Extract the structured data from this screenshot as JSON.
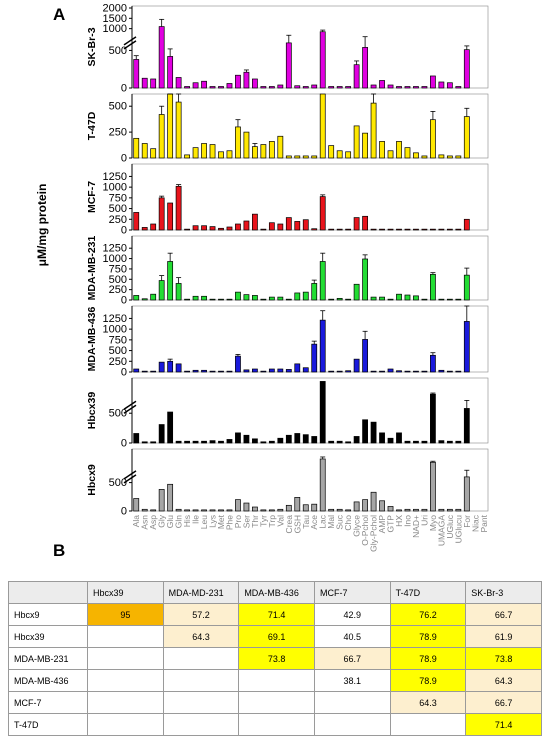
{
  "panel_a_label": "A",
  "panel_b_label": "B",
  "y_axis_title": "μM/mg protein",
  "colors": {
    "magenta": "#e000e0",
    "yellow": "#ffe800",
    "red": "#e8141c",
    "green": "#22dd33",
    "blue": "#1a1adc",
    "black": "#000000",
    "gray": "#a6a6a6",
    "orange": "#f6b400",
    "cream": "#fdefcf",
    "bright": "#ffff00",
    "header": "#ececec"
  },
  "chart_data": {
    "type": "bar",
    "categories": [
      "Ala",
      "Asn",
      "Asp",
      "Gly",
      "Glu",
      "Gln",
      "His",
      "Ile",
      "Leu",
      "Lys",
      "Met",
      "Phe",
      "Pro",
      "Ser",
      "Thr",
      "Tyr",
      "Trp",
      "Val",
      "Crea",
      "GSH",
      "Tau",
      "Ace",
      "Lac",
      "Mal",
      "Suc",
      "Cho",
      "Glyce",
      "O-Pchol",
      "Gly-Pchol",
      "AMP",
      "GTP",
      "HX",
      "Ino",
      "NAD+",
      "Uri",
      "Myo",
      "UMAGA",
      "UGluc",
      "UGlucu",
      "For",
      "Niac",
      "Pant"
    ],
    "panels": [
      {
        "name": "SK-Br-3",
        "color": "#e000e0",
        "axis": "broken",
        "ticks": [
          "0",
          "500",
          "1000",
          "1500",
          "2000"
        ],
        "values": [
          380,
          130,
          120,
          1100,
          420,
          140,
          20,
          70,
          90,
          20,
          20,
          60,
          170,
          210,
          120,
          20,
          20,
          40,
          600,
          30,
          20,
          40,
          850,
          20,
          20,
          20,
          310,
          540,
          40,
          100,
          40,
          20,
          20,
          20,
          20,
          160,
          80,
          70,
          20,
          510,
          0,
          0
        ],
        "errors": [
          50,
          0,
          0,
          350,
          100,
          0,
          0,
          0,
          0,
          0,
          0,
          0,
          0,
          30,
          0,
          0,
          0,
          0,
          80,
          0,
          0,
          0,
          80,
          0,
          0,
          0,
          50,
          70,
          0,
          0,
          0,
          0,
          0,
          0,
          0,
          0,
          0,
          0,
          0,
          50,
          0,
          0
        ]
      },
      {
        "name": "T-47D",
        "color": "#ffe800",
        "axis": "linear",
        "ticks": [
          "0",
          "250",
          "500"
        ],
        "values": [
          190,
          140,
          90,
          420,
          620,
          540,
          30,
          100,
          140,
          130,
          60,
          70,
          300,
          250,
          110,
          130,
          160,
          210,
          20,
          20,
          20,
          20,
          800,
          120,
          70,
          60,
          310,
          240,
          530,
          160,
          70,
          160,
          100,
          50,
          20,
          370,
          30,
          20,
          20,
          400,
          0,
          0
        ],
        "errors": [
          0,
          0,
          0,
          80,
          170,
          210,
          0,
          0,
          0,
          0,
          0,
          0,
          70,
          0,
          30,
          0,
          0,
          0,
          0,
          0,
          0,
          0,
          0,
          0,
          0,
          0,
          0,
          0,
          110,
          0,
          0,
          0,
          0,
          0,
          0,
          80,
          0,
          0,
          0,
          80,
          0,
          0
        ]
      },
      {
        "name": "MCF-7",
        "color": "#e8141c",
        "axis": "linear",
        "ticks": [
          "0",
          "250",
          "500",
          "750",
          "1000",
          "1250"
        ],
        "values": [
          410,
          60,
          140,
          750,
          630,
          1020,
          20,
          100,
          100,
          80,
          40,
          70,
          140,
          210,
          370,
          20,
          170,
          140,
          290,
          200,
          240,
          30,
          780,
          20,
          20,
          20,
          290,
          320,
          20,
          20,
          20,
          20,
          20,
          20,
          20,
          20,
          20,
          20,
          20,
          250,
          0,
          0
        ],
        "errors": [
          0,
          0,
          0,
          40,
          0,
          40,
          0,
          0,
          0,
          0,
          0,
          0,
          0,
          0,
          0,
          0,
          0,
          0,
          0,
          0,
          0,
          0,
          40,
          0,
          0,
          0,
          0,
          0,
          0,
          0,
          0,
          0,
          0,
          0,
          0,
          0,
          0,
          0,
          0,
          0,
          0,
          0
        ]
      },
      {
        "name": "MDA-MB-231",
        "color": "#22dd33",
        "axis": "linear",
        "ticks": [
          "0",
          "250",
          "500",
          "750",
          "1000",
          "1250"
        ],
        "values": [
          110,
          30,
          140,
          470,
          930,
          400,
          20,
          90,
          90,
          20,
          20,
          20,
          190,
          130,
          110,
          20,
          70,
          70,
          20,
          170,
          190,
          400,
          930,
          20,
          40,
          20,
          380,
          990,
          70,
          70,
          20,
          140,
          120,
          100,
          20,
          620,
          20,
          20,
          20,
          600,
          0,
          0
        ],
        "errors": [
          0,
          0,
          0,
          120,
          200,
          140,
          0,
          0,
          0,
          0,
          0,
          0,
          0,
          0,
          0,
          0,
          0,
          0,
          0,
          0,
          0,
          80,
          200,
          0,
          0,
          0,
          0,
          100,
          0,
          0,
          0,
          0,
          0,
          0,
          0,
          40,
          0,
          0,
          0,
          170,
          0,
          0
        ]
      },
      {
        "name": "MDA-MB-436",
        "color": "#1a1adc",
        "axis": "linear",
        "ticks": [
          "0",
          "250",
          "500",
          "750",
          "1000",
          "1250"
        ],
        "values": [
          70,
          20,
          20,
          230,
          250,
          190,
          20,
          40,
          40,
          20,
          20,
          20,
          370,
          50,
          70,
          20,
          70,
          70,
          60,
          190,
          100,
          650,
          1210,
          20,
          20,
          30,
          300,
          760,
          20,
          20,
          70,
          30,
          20,
          20,
          20,
          390,
          40,
          20,
          20,
          1180,
          0,
          0
        ],
        "errors": [
          0,
          0,
          0,
          0,
          50,
          0,
          0,
          0,
          0,
          0,
          0,
          0,
          40,
          0,
          0,
          0,
          0,
          0,
          0,
          0,
          0,
          70,
          220,
          0,
          0,
          0,
          0,
          190,
          0,
          0,
          0,
          0,
          0,
          0,
          0,
          60,
          0,
          0,
          0,
          440,
          0,
          0
        ]
      },
      {
        "name": "Hbcx39",
        "color": "#000000",
        "axis": "broken",
        "ticks": [
          "0",
          "500"
        ],
        "values": [
          160,
          20,
          20,
          310,
          520,
          30,
          30,
          30,
          30,
          40,
          30,
          60,
          170,
          130,
          70,
          20,
          30,
          80,
          130,
          160,
          140,
          110,
          2000,
          30,
          30,
          20,
          110,
          390,
          350,
          170,
          80,
          170,
          30,
          30,
          30,
          1100,
          40,
          30,
          30,
          580,
          0,
          0
        ],
        "errors": [
          0,
          0,
          0,
          0,
          0,
          0,
          0,
          0,
          0,
          0,
          0,
          0,
          0,
          0,
          0,
          0,
          0,
          0,
          0,
          0,
          0,
          0,
          0,
          0,
          0,
          0,
          0,
          0,
          0,
          0,
          0,
          0,
          0,
          0,
          0,
          80,
          0,
          0,
          0,
          80,
          0,
          0
        ]
      },
      {
        "name": "Hbcx9",
        "color": "#a6a6a6",
        "axis": "broken",
        "ticks": [
          "0",
          "500"
        ],
        "values": [
          220,
          30,
          20,
          380,
          470,
          30,
          20,
          20,
          20,
          20,
          20,
          20,
          200,
          140,
          70,
          20,
          20,
          30,
          100,
          240,
          110,
          120,
          1500,
          30,
          30,
          20,
          160,
          200,
          330,
          180,
          80,
          20,
          30,
          30,
          30,
          1250,
          30,
          30,
          30,
          600,
          0,
          0
        ],
        "errors": [
          0,
          0,
          0,
          0,
          0,
          0,
          0,
          0,
          0,
          0,
          0,
          0,
          0,
          0,
          0,
          0,
          0,
          0,
          0,
          0,
          0,
          0,
          150,
          0,
          0,
          0,
          0,
          0,
          0,
          0,
          0,
          0,
          0,
          0,
          0,
          80,
          0,
          0,
          0,
          50,
          0,
          0
        ]
      }
    ]
  },
  "table": {
    "columns": [
      "",
      "Hbcx39",
      "MDA-MD-231",
      "MDA-MB-436",
      "MCF-7",
      "T-47D",
      "SK-Br-3"
    ],
    "rows": [
      {
        "label": "Hbcx9",
        "cells": [
          "95",
          "57.2",
          "71.4",
          "42.9",
          "76.2",
          "66.7"
        ],
        "styles": [
          "orange",
          "cream",
          "bright",
          "none",
          "bright",
          "cream"
        ]
      },
      {
        "label": "Hbcx39",
        "cells": [
          "",
          "64.3",
          "69.1",
          "40.5",
          "78.9",
          "61.9"
        ],
        "styles": [
          "none",
          "cream",
          "bright",
          "none",
          "bright",
          "cream"
        ]
      },
      {
        "label": "MDA-MB-231",
        "cells": [
          "",
          "",
          "73.8",
          "66.7",
          "78.9",
          "73.8"
        ],
        "styles": [
          "none",
          "none",
          "bright",
          "cream",
          "bright",
          "bright"
        ]
      },
      {
        "label": "MDA-MB-436",
        "cells": [
          "",
          "",
          "",
          "38.1",
          "78.9",
          "64.3"
        ],
        "styles": [
          "none",
          "none",
          "none",
          "none",
          "bright",
          "cream"
        ]
      },
      {
        "label": "MCF-7",
        "cells": [
          "",
          "",
          "",
          "",
          "64.3",
          "66.7"
        ],
        "styles": [
          "none",
          "none",
          "none",
          "none",
          "cream",
          "cream"
        ]
      },
      {
        "label": "T-47D",
        "cells": [
          "",
          "",
          "",
          "",
          "",
          "71.4"
        ],
        "styles": [
          "none",
          "none",
          "none",
          "none",
          "none",
          "bright"
        ]
      }
    ]
  }
}
